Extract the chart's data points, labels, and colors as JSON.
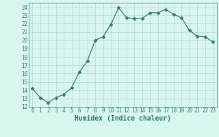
{
  "x": [
    0,
    1,
    2,
    3,
    4,
    5,
    6,
    7,
    8,
    9,
    10,
    11,
    12,
    13,
    14,
    15,
    16,
    17,
    18,
    19,
    20,
    21,
    22,
    23
  ],
  "y": [
    14.2,
    13.1,
    12.5,
    13.1,
    13.5,
    14.3,
    16.2,
    17.5,
    20.0,
    20.4,
    21.9,
    23.9,
    22.7,
    22.6,
    22.6,
    23.3,
    23.3,
    23.7,
    23.1,
    22.7,
    21.2,
    20.5,
    20.4,
    19.8
  ],
  "line_color": "#2e7d6e",
  "marker": "D",
  "marker_size": 2.5,
  "bg_color": "#d8f5f0",
  "grid_color": "#b8d8d2",
  "xlabel": "Humidex (Indice chaleur)",
  "xlim": [
    -0.5,
    23.5
  ],
  "ylim": [
    12,
    24.5
  ],
  "yticks": [
    12,
    13,
    14,
    15,
    16,
    17,
    18,
    19,
    20,
    21,
    22,
    23,
    24
  ],
  "xticks": [
    0,
    1,
    2,
    3,
    4,
    5,
    6,
    7,
    8,
    9,
    10,
    11,
    12,
    13,
    14,
    15,
    16,
    17,
    18,
    19,
    20,
    21,
    22,
    23
  ],
  "tick_fontsize": 5.5,
  "label_fontsize": 7.0
}
